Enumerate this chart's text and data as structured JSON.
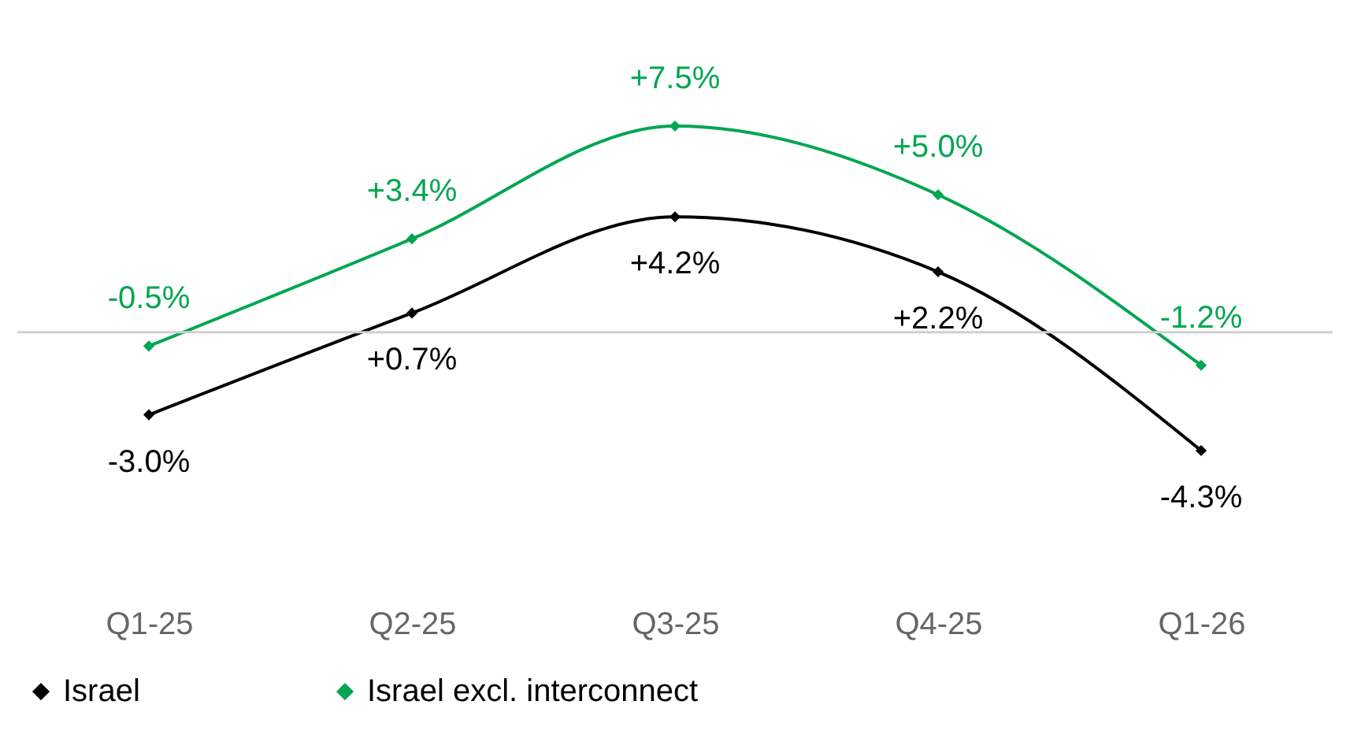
{
  "chart_data": {
    "type": "line",
    "categories": [
      "Q1-25",
      "Q2-25",
      "Q3-25",
      "Q4-25",
      "Q1-26"
    ],
    "series": [
      {
        "name": "Israel",
        "color": "#000000",
        "values": [
          -3.0,
          0.7,
          4.2,
          2.2,
          -4.3
        ],
        "value_labels": [
          "-3.0%",
          "+0.7%",
          "+4.2%",
          "+2.2%",
          "-4.3%"
        ]
      },
      {
        "name": "Israel excl. interconnect",
        "color": "#00a651",
        "values": [
          -0.5,
          3.4,
          7.5,
          5.0,
          -1.2
        ],
        "value_labels": [
          "-0.5%",
          "+3.4%",
          "+7.5%",
          "+5.0%",
          "-1.2%"
        ]
      }
    ],
    "tick_labels": "x",
    "grid": false,
    "legend": "bottom",
    "marker": "diamond",
    "line_style": "solid",
    "ref_lines": [
      {
        "axis": "y",
        "value": 0,
        "color": "#d0d0d0"
      }
    ]
  }
}
